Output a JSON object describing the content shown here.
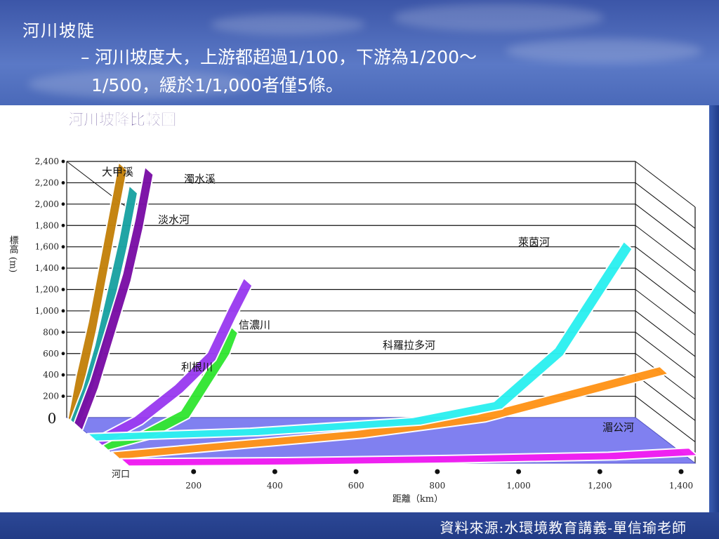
{
  "slide": {
    "title": "河川坡陡",
    "bullet_dash": "–",
    "bullet_line1": "河川坡度大，上游都超過1/100，下游為1/200～",
    "bullet_line2": "1/500，緩於1/1,000者僅5條。",
    "source": "資料來源:水環境教育講義-單信瑜老師"
  },
  "colors": {
    "大甲溪": "#c4820c",
    "淡水河": "#1aa3a3",
    "濁水溪": "#7a0fa6",
    "信濃川": "#9a3cf0",
    "利根川": "#33e633",
    "科羅拉多河": "#ff9418",
    "萊茵河": "#2df0f0",
    "湄公河": "#f21ef2",
    "floor": "#8080f0",
    "background_sky": "#3c56a8"
  },
  "chart_data": {
    "type": "area",
    "title": "河川坡降比較圖",
    "xlabel": "距離（km）",
    "ylabel": "標高 (m)",
    "x_origin_label": "河口",
    "y_zero_label": "0",
    "xlim": [
      0,
      1400
    ],
    "ylim": [
      0,
      2400
    ],
    "x_ticks": [
      200,
      400,
      600,
      800,
      1000,
      1200,
      1400
    ],
    "x_tick_labels": [
      "200",
      "400",
      "600",
      "800",
      "1,000",
      "1,200",
      "1,400"
    ],
    "y_ticks": [
      200,
      400,
      600,
      800,
      1000,
      1200,
      1400,
      1600,
      1800,
      2000,
      2200,
      2400
    ],
    "y_tick_labels": [
      "200",
      "400",
      "600",
      "800",
      "1,000",
      "1,200",
      "1,400",
      "1,600",
      "1,800",
      "2,000",
      "2,200",
      "2,400"
    ],
    "series": [
      {
        "name": "大甲溪",
        "x": [
          0,
          20,
          50,
          80,
          110,
          125
        ],
        "y": [
          0,
          400,
          900,
          1500,
          2100,
          2400
        ]
      },
      {
        "name": "淡水河",
        "x": [
          0,
          30,
          60,
          90,
          120,
          145
        ],
        "y": [
          0,
          300,
          700,
          1200,
          1700,
          2200
        ]
      },
      {
        "name": "濁水溪",
        "x": [
          0,
          40,
          80,
          120,
          150,
          175
        ],
        "y": [
          0,
          400,
          900,
          1400,
          1900,
          2400
        ]
      },
      {
        "name": "利根川",
        "x": [
          0,
          100,
          200,
          250,
          300,
          320
        ],
        "y": [
          0,
          100,
          300,
          600,
          900,
          1100
        ]
      },
      {
        "name": "信濃川",
        "x": [
          0,
          100,
          200,
          280,
          330,
          370
        ],
        "y": [
          0,
          200,
          500,
          800,
          1200,
          1500
        ]
      },
      {
        "name": "科羅拉多河",
        "x": [
          0,
          300,
          600,
          900,
          1100,
          1350
        ],
        "y": [
          0,
          100,
          200,
          350,
          550,
          800
        ]
      },
      {
        "name": "萊茵河",
        "x": [
          0,
          400,
          800,
          1000,
          1150,
          1320
        ],
        "y": [
          0,
          50,
          150,
          300,
          800,
          1800
        ]
      },
      {
        "name": "湄公河",
        "x": [
          0,
          400,
          800,
          1200,
          1400
        ],
        "y": [
          0,
          10,
          30,
          60,
          100
        ]
      }
    ]
  }
}
